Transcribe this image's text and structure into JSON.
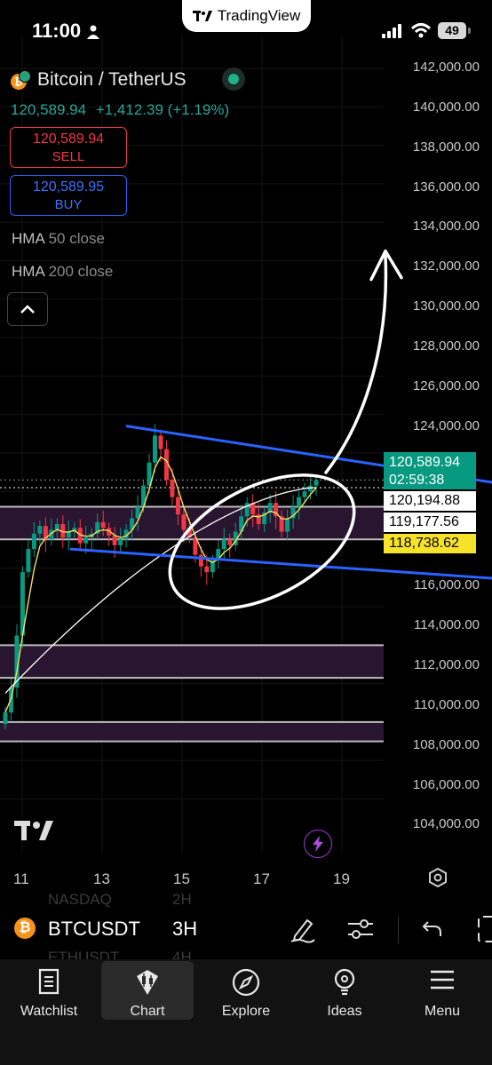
{
  "status": {
    "time": "11:00",
    "battery": "49"
  },
  "app": {
    "name": "TradingView"
  },
  "symbol": {
    "title": "Bitcoin / TetherUS",
    "code": "BTCUSDT",
    "interval": "3H",
    "last": "120,589.94",
    "change": "+1,412.39",
    "change_pct": "(+1.19%)"
  },
  "trade": {
    "sell_price": "120,589.94",
    "sell_label": "SELL",
    "buy_price": "120,589.95",
    "buy_label": "BUY"
  },
  "indicators": [
    {
      "name": "HMA",
      "params": "50 close"
    },
    {
      "name": "HMA",
      "params": "200 close"
    }
  ],
  "price_axis": [
    "142,000.00",
    "140,000.00",
    "138,000.00",
    "136,000.00",
    "134,000.00",
    "132,000.00",
    "130,000.00",
    "128,000.00",
    "126,000.00",
    "124,000.00",
    "116,000.00",
    "114,000.00",
    "112,000.00",
    "110,000.00",
    "108,000.00",
    "106,000.00",
    "104,000.00"
  ],
  "price_tags": {
    "last": "120,589.94",
    "countdown": "02:59:38",
    "hma_a": "120,194.88",
    "hma_b": "119,177.56",
    "hma_c": "118,738.62"
  },
  "date_axis": [
    "11",
    "13",
    "15",
    "17",
    "19"
  ],
  "watch_ghost": [
    {
      "code": "NASDAQ",
      "interval": "2H"
    },
    {
      "code": "ETHUSDT",
      "interval": "4H"
    }
  ],
  "tabs": [
    "Watchlist",
    "Chart",
    "Explore",
    "Ideas",
    "Menu"
  ],
  "colors": {
    "up": "#089981",
    "down": "#f23645",
    "accent": "#2962ff",
    "hma50": "#f5e05b",
    "hma200": "#ffffff",
    "zone": "#2a1530"
  },
  "chart_data": {
    "type": "candlestick",
    "ylim": [
      103000,
      143000
    ],
    "x_ticks": [
      "11",
      "13",
      "15",
      "17",
      "19"
    ],
    "closes": [
      108500,
      109800,
      112500,
      115800,
      117000,
      117800,
      118200,
      117500,
      118000,
      118300,
      117600,
      117900,
      118100,
      117300,
      117600,
      117800,
      118400,
      118100,
      117700,
      117200,
      117500,
      118000,
      118600,
      119200,
      120300,
      121500,
      122900,
      122200,
      120600,
      119700,
      118800,
      118000,
      117600,
      116700,
      116100,
      115800,
      116400,
      117000,
      117500,
      117200,
      117900,
      118700,
      119400,
      118800,
      118300,
      118900,
      119400,
      118700,
      117900,
      118600,
      119200,
      119700,
      120000,
      120300,
      120590
    ],
    "support_zones": [
      [
        117500,
        119200
      ],
      [
        110300,
        112000
      ],
      [
        107000,
        108000
      ]
    ],
    "trendlines": [
      {
        "from": [
          12.3,
          123400
        ],
        "to": [
          19.8,
          118600
        ]
      },
      {
        "from": [
          11.6,
          117000
        ],
        "to": [
          18.2,
          115100
        ]
      }
    ],
    "target_arrow_to": 132500
  }
}
